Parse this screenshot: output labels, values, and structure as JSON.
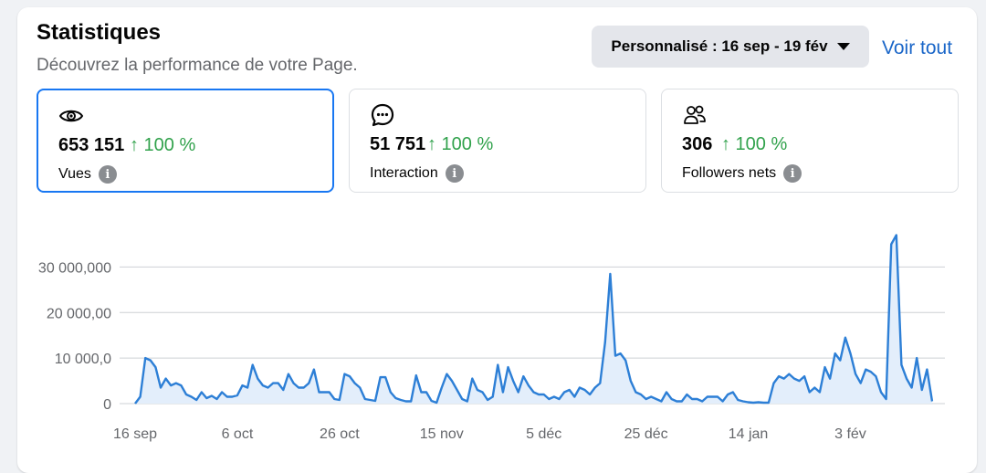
{
  "header": {
    "title": "Statistiques",
    "subtitle": "Découvrez la performance de votre Page.",
    "date_range": "Personnalisé : 16 sep - 19 fév",
    "see_all": "Voir tout"
  },
  "metrics": [
    {
      "value": "653 151",
      "change": "↑ 100 %",
      "label": "Vues",
      "icon": "eye-icon",
      "selected": true
    },
    {
      "value": "51 751",
      "change": "↑ 100 %",
      "label": "Interaction",
      "icon": "chat-bubble-icon",
      "selected": false
    },
    {
      "value": "306",
      "change": "↑ 100 %",
      "label": "Followers nets",
      "icon": "people-icon",
      "selected": false
    }
  ],
  "colors": {
    "accent": "#1877f2",
    "line": "#2d7fd6",
    "fill": "#e3eefb",
    "positive": "#31a24c",
    "link": "#1a66c8"
  },
  "chart_data": {
    "type": "area",
    "title": "",
    "xlabel": "",
    "ylabel": "",
    "ytick_labels": [
      "0",
      "10 000,0",
      "20 000,00",
      "30 000,000"
    ],
    "ytick_values": [
      0,
      10000,
      20000,
      30000
    ],
    "ylim": [
      0,
      38500
    ],
    "xtick_labels": [
      "16 sep",
      "6 oct",
      "26 oct",
      "15 nov",
      "5 déc",
      "25 déc",
      "14 jan",
      "3 fév"
    ],
    "x_start": "16 sep",
    "x_end": "19 fév",
    "grid": true,
    "series": [
      {
        "values": [
          0,
          1500,
          10000,
          9500,
          8000,
          3500,
          5500,
          4000,
          4500,
          4000,
          2000,
          1500,
          800,
          2500,
          1200,
          1700,
          1000,
          2500,
          1500,
          1500,
          1800,
          4000,
          3500,
          8500,
          5500,
          4000,
          3500,
          4500,
          4500,
          3000,
          6500,
          4500,
          3500,
          3500,
          4500,
          7500,
          2500,
          2500,
          2500,
          1000,
          800,
          6500,
          6000,
          4500,
          3500,
          1000,
          800,
          600,
          5800,
          5800,
          2500,
          1200,
          800,
          500,
          500,
          6200,
          2500,
          2500,
          600,
          200,
          3500,
          6500,
          5000,
          3000,
          1000,
          500,
          5500,
          3000,
          2500,
          800,
          1500,
          8500,
          2500,
          8000,
          5000,
          2500,
          6000,
          4000,
          2500,
          2000,
          2000,
          1000,
          1500,
          1000,
          2500,
          3000,
          1500,
          3500,
          3000,
          2000,
          3500,
          4500,
          13500,
          28500,
          10500,
          11000,
          9500,
          5000,
          2500,
          2000,
          1000,
          1500,
          1000,
          500,
          2500,
          1000,
          500,
          500,
          2000,
          1000,
          1000,
          500,
          1500,
          1500,
          1500,
          500,
          2000,
          2500,
          800,
          500,
          300,
          200,
          300,
          200,
          200,
          4500,
          6000,
          5500,
          6500,
          5500,
          5000,
          6000,
          2500,
          3500,
          2500,
          8000,
          5500,
          11000,
          9500,
          14500,
          11000,
          6500,
          4500,
          7500,
          7000,
          6000,
          2500,
          1000,
          35000,
          37000,
          8500,
          5500,
          3500,
          10000,
          3000,
          7500,
          500
        ]
      }
    ]
  }
}
